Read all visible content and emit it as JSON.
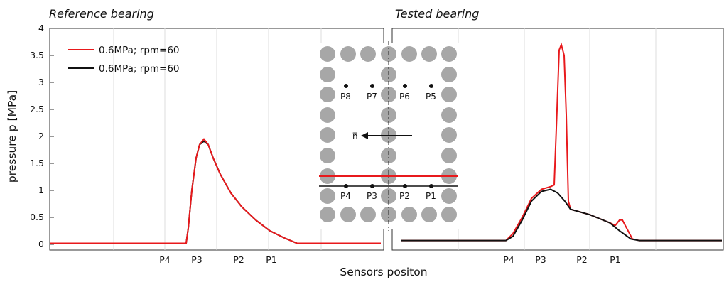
{
  "chart_data": [
    {
      "type": "line",
      "subtitle": "Reference bearing",
      "ylabel": "pressure p [MPa]",
      "xlabel": "Sensors positon",
      "ylim": [
        0,
        4
      ],
      "yticks": [
        "0",
        "0.5",
        "1",
        "1.5",
        "2",
        "2.5",
        "3",
        "3.5",
        "4"
      ],
      "xticks": [
        "P4",
        "P3",
        "P2",
        "P1"
      ],
      "grid": true,
      "legend_position": "top-left",
      "series": [
        {
          "name": "0.6MPa; rpm=60",
          "color": "#e8191c",
          "x": [
            0,
            0.27,
            0.262,
            0.27,
            0.28,
            0.3,
            0.34,
            0.4,
            0.46,
            0.5,
            0.56,
            0.6
          ],
          "y": [
            0.02,
            0.02,
            0.05,
            0.7,
            1.5,
            1.95,
            1.5,
            0.85,
            0.55,
            0.38,
            0.18,
            0.02
          ]
        },
        {
          "name": "0.6MPa; rpm=60",
          "color": "#111111",
          "x": [
            0,
            0.26,
            0.27,
            0.28,
            0.3,
            0.34,
            0.4,
            0.46,
            0.5,
            0.56,
            0.6
          ],
          "y": [
            0.02,
            0.02,
            0.6,
            1.4,
            1.92,
            1.5,
            0.85,
            0.55,
            0.38,
            0.18,
            0.02
          ]
        }
      ]
    },
    {
      "type": "line",
      "subtitle": "Tested bearing",
      "ylim": [
        0,
        4
      ],
      "xticks": [
        "P4",
        "P3",
        "P2",
        "P1"
      ],
      "grid": true,
      "series": [
        {
          "name": "0.6MPa; rpm=60",
          "color": "#e8191c",
          "values": [
            0.07,
            0.07,
            0.2,
            0.85,
            1.07,
            1.1,
            3.7,
            3.2,
            0.7,
            0.62,
            0.38,
            0.46,
            0.08,
            0.07
          ]
        },
        {
          "name": "0.6MPa; rpm=60",
          "color": "#111111",
          "values": [
            0.07,
            0.07,
            0.15,
            0.8,
            1.02,
            0.95,
            0.65,
            0.6,
            0.55,
            0.45,
            0.3,
            0.08,
            0.07
          ]
        }
      ]
    }
  ],
  "diagram": {
    "sensor_labels_top": [
      "P8",
      "P7",
      "P6",
      "P5"
    ],
    "sensor_labels_bottom": [
      "P4",
      "P3",
      "P2",
      "P1"
    ],
    "arrow_label": "n̅"
  }
}
